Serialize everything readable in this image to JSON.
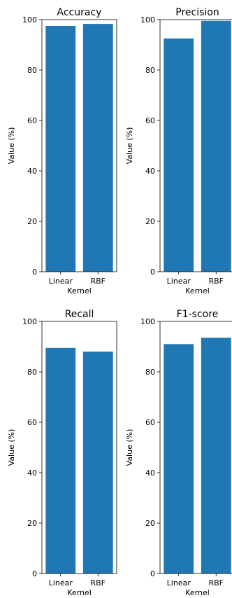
{
  "chart_data": [
    {
      "type": "bar",
      "title": "Accuracy",
      "categories": [
        "Linear",
        "RBF"
      ],
      "values": [
        97.5,
        98.3
      ],
      "xlabel": "Kernel",
      "ylabel": "Value (%)",
      "ylim": [
        0,
        100
      ],
      "yticks": [
        "0",
        "20",
        "40",
        "60",
        "80",
        "100"
      ],
      "color": "#1f77b4"
    },
    {
      "type": "bar",
      "title": "Precision",
      "categories": [
        "Linear",
        "RBF"
      ],
      "values": [
        92.5,
        99.5
      ],
      "xlabel": "Kernel",
      "ylabel": "Value (%)",
      "ylim": [
        0,
        100
      ],
      "yticks": [
        "0",
        "20",
        "40",
        "60",
        "80",
        "100"
      ],
      "color": "#1f77b4"
    },
    {
      "type": "bar",
      "title": "Recall",
      "categories": [
        "Linear",
        "RBF"
      ],
      "values": [
        89.5,
        88.0
      ],
      "xlabel": "Kernel",
      "ylabel": "Value (%)",
      "ylim": [
        0,
        100
      ],
      "yticks": [
        "0",
        "20",
        "40",
        "60",
        "80",
        "100"
      ],
      "color": "#1f77b4"
    },
    {
      "type": "bar",
      "title": "F1-score",
      "categories": [
        "Linear",
        "RBF"
      ],
      "values": [
        91.0,
        93.5
      ],
      "xlabel": "Kernel",
      "ylabel": "Value (%)",
      "ylim": [
        0,
        100
      ],
      "yticks": [
        "0",
        "20",
        "40",
        "60",
        "80",
        "100"
      ],
      "color": "#1f77b4"
    }
  ]
}
